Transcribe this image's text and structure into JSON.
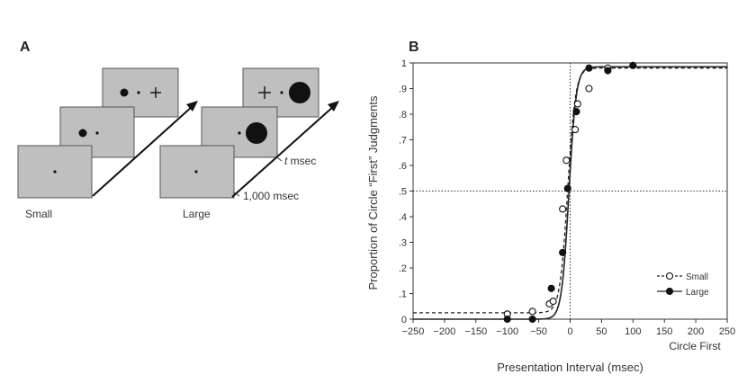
{
  "panel_a": {
    "label": "A",
    "small_label": "Small",
    "large_label": "Large",
    "t_msec_italic": "t",
    "t_msec_rest": " msec",
    "duration_label": "1,000 msec"
  },
  "panel_b": {
    "label": "B"
  },
  "chart_data": {
    "type": "scatter",
    "title": "",
    "xlabel": "Presentation Interval (msec)",
    "xlabel_secondary": "Circle First",
    "ylabel": "Proportion of Circle “First” Judgments",
    "xlim": [
      -250,
      250
    ],
    "ylim": [
      0,
      1
    ],
    "xticks": [
      -250,
      -200,
      -150,
      -100,
      -50,
      0,
      50,
      100,
      150,
      200,
      250
    ],
    "xtick_labels": [
      "−250",
      "−200",
      "−150",
      "−100",
      "−50",
      "0",
      "50",
      "100",
      "150",
      "200",
      "250"
    ],
    "yticks": [
      0,
      0.1,
      0.2,
      0.3,
      0.4,
      0.5,
      0.6,
      0.7,
      0.8,
      0.9,
      1
    ],
    "ytick_labels": [
      "0",
      ".1",
      ".2",
      ".3",
      ".4",
      ".5",
      ".6",
      ".7",
      ".8",
      ".9",
      "1"
    ],
    "reference_lines": {
      "x": 0,
      "y": 0.5
    },
    "legend_position": "bottom-right",
    "series": [
      {
        "name": "Small",
        "marker": "open-circle",
        "line": "dashed",
        "x": [
          -100,
          -60,
          -33,
          -27,
          -12,
          -6,
          8,
          12,
          30,
          60
        ],
        "y": [
          0.02,
          0.03,
          0.06,
          0.07,
          0.43,
          0.62,
          0.74,
          0.84,
          0.9,
          0.98
        ],
        "fit": {
          "lower": 0.025,
          "upper": 0.98,
          "mid": -4,
          "scale": 6.2
        }
      },
      {
        "name": "Large",
        "marker": "filled-circle",
        "line": "solid",
        "x": [
          -100,
          -60,
          -30,
          -12,
          -4,
          10,
          30,
          60,
          100
        ],
        "y": [
          0.0,
          0.0,
          0.12,
          0.26,
          0.51,
          0.81,
          0.98,
          0.97,
          0.99
        ],
        "fit": {
          "lower": 0.0,
          "upper": 0.985,
          "mid": -2,
          "scale": 5.8
        }
      }
    ]
  }
}
